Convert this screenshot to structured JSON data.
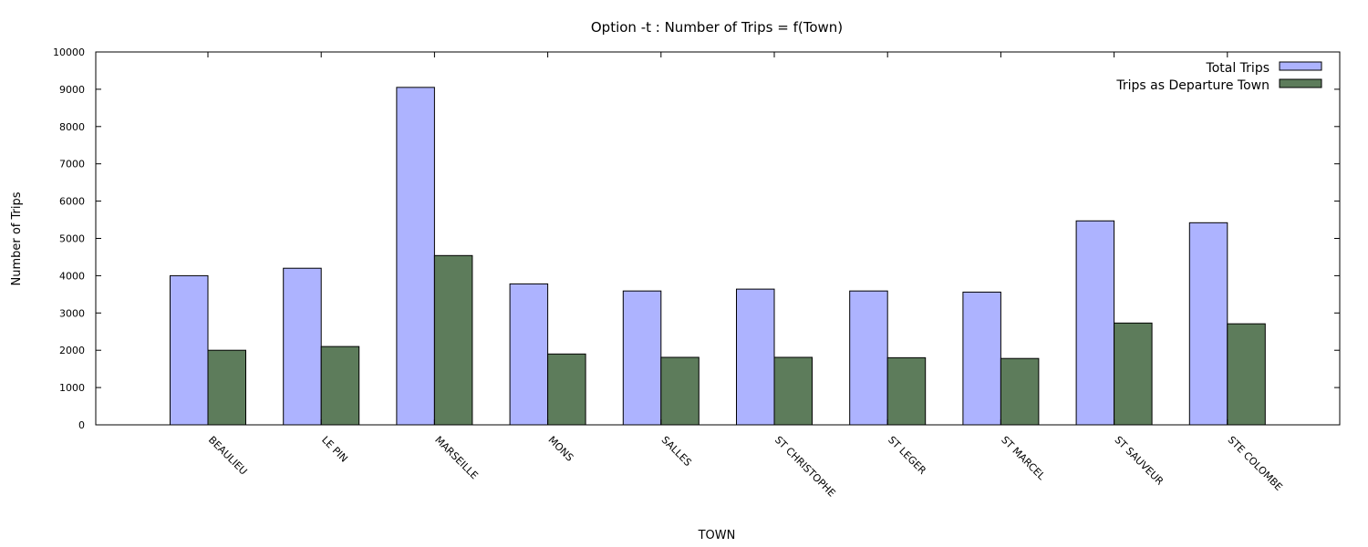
{
  "chart_data": {
    "type": "bar",
    "title": "Option -t : Number of Trips = f(Town)",
    "xlabel": "TOWN",
    "ylabel": "Number of Trips",
    "ylim": [
      0,
      10000
    ],
    "yticks": [
      0,
      1000,
      2000,
      3000,
      4000,
      5000,
      6000,
      7000,
      8000,
      9000,
      10000
    ],
    "categories": [
      "BEAULIEU",
      "LE PIN",
      "MARSEILLE",
      "MONS",
      "SALLES",
      "ST CHRISTOPHE",
      "ST LEGER",
      "ST MARCEL",
      "ST SAUVEUR",
      "STE COLOMBE"
    ],
    "series": [
      {
        "name": "Total Trips",
        "color": "#adb3ff",
        "values": [
          4000,
          4200,
          9050,
          3780,
          3590,
          3640,
          3590,
          3560,
          5470,
          5420
        ]
      },
      {
        "name": "Trips as Departure Town",
        "color": "#5d7c5b",
        "values": [
          2000,
          2100,
          4540,
          1900,
          1810,
          1810,
          1800,
          1780,
          2730,
          2710
        ]
      }
    ],
    "grid": false,
    "legend_position": "top-right"
  }
}
